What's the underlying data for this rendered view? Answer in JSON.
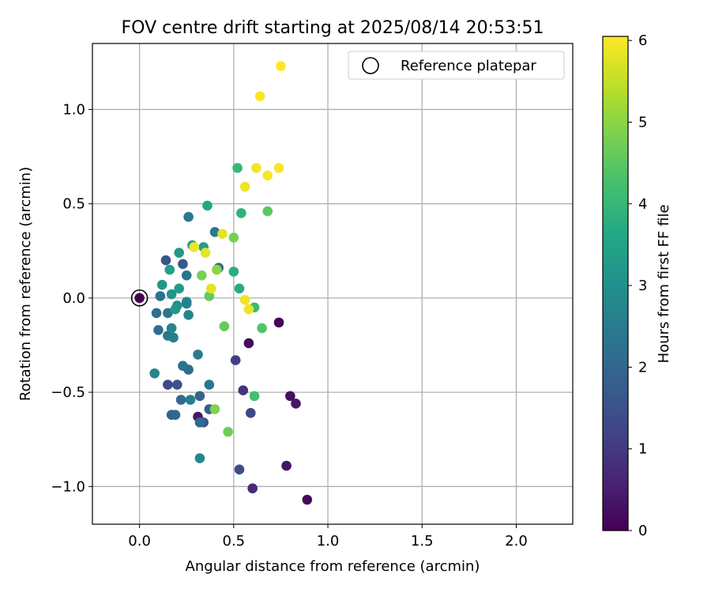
{
  "chart_data": {
    "type": "scatter",
    "title": "FOV centre drift starting at 2025/08/14 20:53:51",
    "xlabel": "Angular distance from reference (arcmin)",
    "ylabel": "Rotation from reference (arcmin)",
    "xlim": [
      -0.25,
      2.3
    ],
    "ylim": [
      -1.2,
      1.35
    ],
    "xticks": [
      0.0,
      0.5,
      1.0,
      1.5,
      2.0
    ],
    "xtick_labels": [
      "0.0",
      "0.5",
      "1.0",
      "1.5",
      "2.0"
    ],
    "yticks": [
      -1.0,
      -0.5,
      0.0,
      0.5,
      1.0
    ],
    "ytick_labels": [
      "−1.0",
      "−0.5",
      "0.0",
      "0.5",
      "1.0"
    ],
    "grid": true,
    "legend": {
      "position": "top-right",
      "label": "Reference platepar"
    },
    "reference_point": {
      "x": 0.0,
      "y": 0.0
    },
    "colorbar": {
      "label": "Hours from first FF file",
      "colormap": "viridis",
      "range": [
        0,
        6.05
      ],
      "ticks": [
        0,
        1,
        2,
        3,
        4,
        5,
        6
      ],
      "tick_labels": [
        "0",
        "1",
        "2",
        "3",
        "4",
        "5",
        "6"
      ]
    },
    "points": [
      {
        "x": 0.0,
        "y": 0.0,
        "h": 0.0
      },
      {
        "x": 0.74,
        "y": -0.13,
        "h": 0.05
      },
      {
        "x": 0.89,
        "y": -1.07,
        "h": 0.15
      },
      {
        "x": 0.58,
        "y": -0.24,
        "h": 0.2
      },
      {
        "x": 0.78,
        "y": -0.89,
        "h": 0.35
      },
      {
        "x": 0.8,
        "y": -0.52,
        "h": 0.25
      },
      {
        "x": 0.83,
        "y": -0.56,
        "h": 0.4
      },
      {
        "x": 0.31,
        "y": -0.63,
        "h": 0.4
      },
      {
        "x": 0.6,
        "y": -1.01,
        "h": 0.7
      },
      {
        "x": 0.55,
        "y": -0.49,
        "h": 0.9
      },
      {
        "x": 0.51,
        "y": -0.33,
        "h": 1.1
      },
      {
        "x": 0.59,
        "y": -0.61,
        "h": 1.3
      },
      {
        "x": 0.53,
        "y": -0.91,
        "h": 1.4
      },
      {
        "x": 0.15,
        "y": -0.46,
        "h": 1.3
      },
      {
        "x": 0.2,
        "y": -0.46,
        "h": 1.5
      },
      {
        "x": 0.34,
        "y": -0.66,
        "h": 1.6
      },
      {
        "x": 0.14,
        "y": 0.2,
        "h": 1.6
      },
      {
        "x": 0.23,
        "y": 0.18,
        "h": 1.7
      },
      {
        "x": 0.17,
        "y": -0.62,
        "h": 1.9
      },
      {
        "x": 0.19,
        "y": -0.62,
        "h": 2.0
      },
      {
        "x": 0.32,
        "y": -0.52,
        "h": 1.95
      },
      {
        "x": 0.32,
        "y": -0.66,
        "h": 2.1
      },
      {
        "x": 0.37,
        "y": -0.59,
        "h": 1.8
      },
      {
        "x": 0.22,
        "y": -0.54,
        "h": 2.05
      },
      {
        "x": 0.26,
        "y": -0.38,
        "h": 2.15
      },
      {
        "x": 0.23,
        "y": -0.36,
        "h": 2.3
      },
      {
        "x": 0.31,
        "y": -0.3,
        "h": 2.5
      },
      {
        "x": 0.37,
        "y": -0.46,
        "h": 2.4
      },
      {
        "x": 0.27,
        "y": -0.54,
        "h": 2.55
      },
      {
        "x": 0.32,
        "y": -0.85,
        "h": 2.8
      },
      {
        "x": 0.08,
        "y": -0.4,
        "h": 2.75
      },
      {
        "x": 0.1,
        "y": -0.17,
        "h": 2.2
      },
      {
        "x": 0.15,
        "y": -0.2,
        "h": 2.35
      },
      {
        "x": 0.18,
        "y": -0.21,
        "h": 2.6
      },
      {
        "x": 0.17,
        "y": -0.16,
        "h": 2.7
      },
      {
        "x": 0.09,
        "y": -0.08,
        "h": 2.2
      },
      {
        "x": 0.15,
        "y": -0.08,
        "h": 2.4
      },
      {
        "x": 0.11,
        "y": 0.01,
        "h": 2.25
      },
      {
        "x": 0.25,
        "y": 0.12,
        "h": 2.3
      },
      {
        "x": 0.26,
        "y": 0.43,
        "h": 2.4
      },
      {
        "x": 0.4,
        "y": 0.35,
        "h": 2.5
      },
      {
        "x": 0.42,
        "y": 0.16,
        "h": 2.1
      },
      {
        "x": 0.26,
        "y": -0.09,
        "h": 2.7
      },
      {
        "x": 0.25,
        "y": -0.02,
        "h": 2.9
      },
      {
        "x": 0.25,
        "y": -0.03,
        "h": 2.6
      },
      {
        "x": 0.2,
        "y": -0.04,
        "h": 3.0
      },
      {
        "x": 0.19,
        "y": -0.06,
        "h": 3.2
      },
      {
        "x": 0.17,
        "y": 0.02,
        "h": 3.1
      },
      {
        "x": 0.21,
        "y": 0.05,
        "h": 3.3
      },
      {
        "x": 0.12,
        "y": 0.07,
        "h": 3.2
      },
      {
        "x": 0.16,
        "y": 0.15,
        "h": 3.4
      },
      {
        "x": 0.21,
        "y": 0.24,
        "h": 3.2
      },
      {
        "x": 0.28,
        "y": 0.28,
        "h": 3.5
      },
      {
        "x": 0.34,
        "y": 0.27,
        "h": 3.4
      },
      {
        "x": 0.36,
        "y": 0.49,
        "h": 3.6
      },
      {
        "x": 0.5,
        "y": 0.14,
        "h": 3.8
      },
      {
        "x": 0.53,
        "y": 0.05,
        "h": 3.7
      },
      {
        "x": 0.54,
        "y": 0.45,
        "h": 3.9
      },
      {
        "x": 0.52,
        "y": 0.69,
        "h": 4.0
      },
      {
        "x": 0.61,
        "y": -0.05,
        "h": 4.1
      },
      {
        "x": 0.61,
        "y": -0.52,
        "h": 4.2
      },
      {
        "x": 0.65,
        "y": -0.16,
        "h": 4.4
      },
      {
        "x": 0.68,
        "y": 0.46,
        "h": 4.5
      },
      {
        "x": 0.45,
        "y": -0.15,
        "h": 4.6
      },
      {
        "x": 0.47,
        "y": -0.71,
        "h": 4.7
      },
      {
        "x": 0.4,
        "y": -0.59,
        "h": 4.9
      },
      {
        "x": 0.37,
        "y": 0.01,
        "h": 4.6
      },
      {
        "x": 0.33,
        "y": 0.12,
        "h": 4.8
      },
      {
        "x": 0.41,
        "y": 0.15,
        "h": 5.0
      },
      {
        "x": 0.5,
        "y": 0.32,
        "h": 4.8
      },
      {
        "x": 0.44,
        "y": 0.34,
        "h": 5.8
      },
      {
        "x": 0.29,
        "y": 0.27,
        "h": 5.9
      },
      {
        "x": 0.35,
        "y": 0.24,
        "h": 5.8
      },
      {
        "x": 0.38,
        "y": 0.05,
        "h": 5.8
      },
      {
        "x": 0.56,
        "y": -0.01,
        "h": 5.9
      },
      {
        "x": 0.58,
        "y": -0.06,
        "h": 5.9
      },
      {
        "x": 0.56,
        "y": 0.59,
        "h": 5.9
      },
      {
        "x": 0.62,
        "y": 0.69,
        "h": 5.95
      },
      {
        "x": 0.68,
        "y": 0.65,
        "h": 6.0
      },
      {
        "x": 0.74,
        "y": 0.69,
        "h": 6.0
      },
      {
        "x": 0.64,
        "y": 1.07,
        "h": 6.0
      },
      {
        "x": 0.75,
        "y": 1.23,
        "h": 6.05
      }
    ]
  }
}
